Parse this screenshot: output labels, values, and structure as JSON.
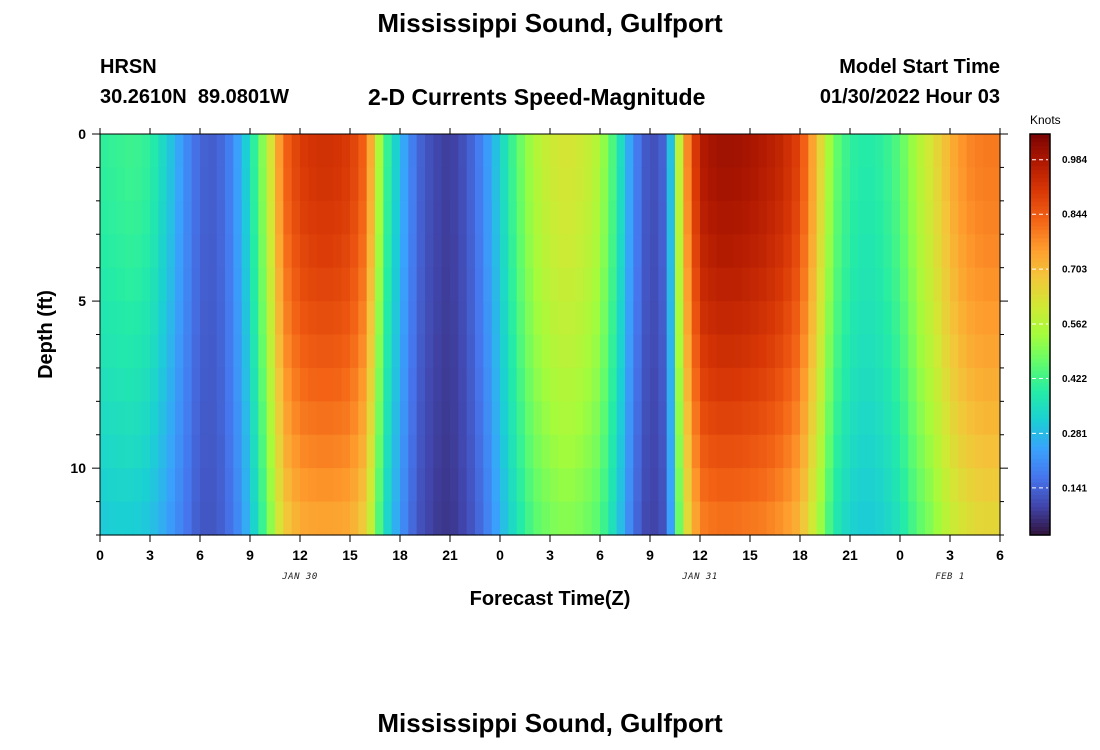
{
  "header": {
    "title": "Mississippi Sound, Gulfport",
    "station_id": "HRSN",
    "coordinates": "30.2610N  89.0801W",
    "subtitle": "2-D Currents Speed-Magnitude",
    "model_label": "Model Start Time",
    "model_time": "01/30/2022 Hour 03"
  },
  "footer": {
    "title": "Mississippi Sound, Gulfport"
  },
  "colors": {
    "colormap": [
      "#30123b",
      "#4145ab",
      "#4675ed",
      "#39a2fc",
      "#1bcfd4",
      "#24eca6",
      "#61fc6c",
      "#a4fc3b",
      "#d1e834",
      "#f3c63a",
      "#fe9b2d",
      "#f36315",
      "#d93806",
      "#b11901",
      "#7a0403"
    ]
  },
  "chart_data": {
    "type": "heatmap",
    "title": "2-D Currents Speed-Magnitude",
    "xlabel": "Forecast Time(Z)",
    "ylabel": "Depth (ft)",
    "xlim": [
      0,
      54
    ],
    "ylim": [
      12,
      0
    ],
    "x_ticks": [
      0,
      3,
      6,
      9,
      12,
      15,
      18,
      21,
      24,
      27,
      30,
      33,
      36,
      39,
      42,
      45,
      48,
      51,
      54
    ],
    "x_tick_labels": [
      "0",
      "3",
      "6",
      "9",
      "12",
      "15",
      "18",
      "21",
      "0",
      "3",
      "6",
      "9",
      "12",
      "15",
      "18",
      "21",
      "0",
      "3",
      "6"
    ],
    "y_ticks": [
      0,
      5,
      10
    ],
    "y_tick_labels": [
      "0",
      "5",
      "10"
    ],
    "date_labels": [
      {
        "label": "JAN 30",
        "x": 12
      },
      {
        "label": "JAN 31",
        "x": 36
      },
      {
        "label": "FEB 1",
        "x": 51
      }
    ],
    "colorbar": {
      "units": "Knots",
      "range": [
        0.02,
        1.05
      ],
      "ticks": [
        0.141,
        0.281,
        0.422,
        0.562,
        0.703,
        0.844,
        0.984
      ],
      "tick_labels": [
        "0.141",
        "0.281",
        "0.422",
        "0.562",
        "0.703",
        "0.844",
        "0.984"
      ]
    },
    "time_profile": {
      "hours": [
        0,
        1,
        2,
        3,
        4,
        5,
        6,
        7,
        8,
        9,
        10,
        11,
        12,
        13,
        14,
        15,
        16,
        17,
        18,
        19,
        20,
        21,
        22,
        23,
        24,
        25,
        26,
        27,
        28,
        29,
        30,
        31,
        32,
        33,
        34,
        35,
        36,
        37,
        38,
        39,
        40,
        41,
        42,
        43,
        44,
        45,
        46,
        47,
        48,
        49,
        50,
        51,
        52,
        53,
        54
      ],
      "surface_speed": [
        0.4,
        0.41,
        0.42,
        0.4,
        0.32,
        0.22,
        0.14,
        0.13,
        0.2,
        0.35,
        0.55,
        0.82,
        0.9,
        0.92,
        0.92,
        0.9,
        0.82,
        0.45,
        0.28,
        0.15,
        0.1,
        0.08,
        0.12,
        0.2,
        0.32,
        0.45,
        0.55,
        0.6,
        0.62,
        0.6,
        0.55,
        0.4,
        0.2,
        0.1,
        0.15,
        0.72,
        0.97,
        1.0,
        1.0,
        0.99,
        0.97,
        0.94,
        0.88,
        0.7,
        0.48,
        0.4,
        0.38,
        0.4,
        0.45,
        0.55,
        0.63,
        0.72,
        0.78,
        0.8,
        0.8
      ],
      "bottom_speed": [
        0.3,
        0.31,
        0.31,
        0.29,
        0.24,
        0.18,
        0.12,
        0.12,
        0.17,
        0.28,
        0.45,
        0.66,
        0.72,
        0.73,
        0.73,
        0.72,
        0.65,
        0.36,
        0.22,
        0.12,
        0.08,
        0.07,
        0.1,
        0.16,
        0.26,
        0.36,
        0.44,
        0.48,
        0.5,
        0.48,
        0.44,
        0.32,
        0.16,
        0.08,
        0.12,
        0.58,
        0.78,
        0.8,
        0.8,
        0.79,
        0.78,
        0.75,
        0.7,
        0.56,
        0.38,
        0.32,
        0.3,
        0.32,
        0.36,
        0.44,
        0.5,
        0.58,
        0.62,
        0.64,
        0.64
      ]
    }
  }
}
